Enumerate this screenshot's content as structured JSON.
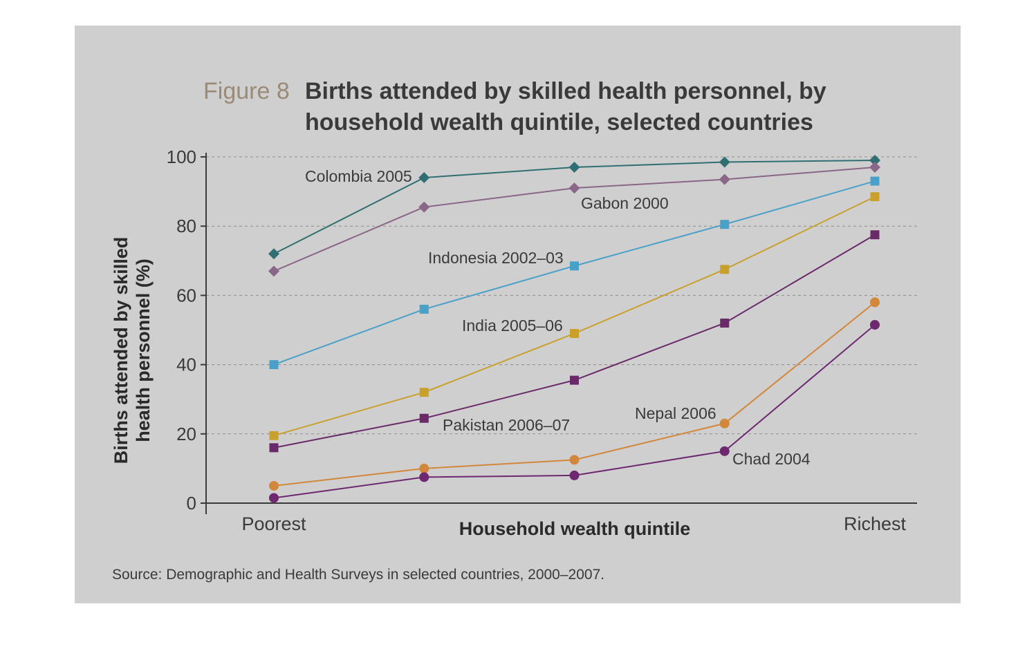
{
  "figure": {
    "title_prefix": "Figure 8",
    "title_line1": "Births attended by skilled health personnel, by",
    "title_line2": "household wealth quintile, selected countries",
    "source": "Source: Demographic and Health Surveys in selected countries, 2000–2007."
  },
  "chart_data": {
    "type": "line",
    "title": "Births attended by skilled health personnel, by household wealth quintile, selected countries",
    "xlabel": "Household wealth quintile",
    "ylabel_line1": "Births attended by skilled",
    "ylabel_line2": "health personnel (%)",
    "categories": [
      "Poorest",
      "",
      "",
      "",
      "Richest"
    ],
    "ylim": [
      0,
      100
    ],
    "yticks": [
      "0",
      "20",
      "40",
      "60",
      "80",
      "100"
    ],
    "grid": true,
    "series": [
      {
        "name": "Colombia 2005",
        "marker": "diamond",
        "color": "#2f6f73",
        "values": [
          72,
          94,
          97,
          98.5,
          99
        ]
      },
      {
        "name": "Gabon 2000",
        "marker": "diamond",
        "color": "#8a6688",
        "values": [
          67,
          85.5,
          91,
          93.5,
          97
        ]
      },
      {
        "name": "Indonesia 2002–03",
        "marker": "square",
        "color": "#49a0c8",
        "values": [
          40,
          56,
          68.5,
          80.5,
          93
        ]
      },
      {
        "name": "India 2005–06",
        "marker": "square",
        "color": "#c9a02c",
        "values": [
          19.5,
          32,
          49,
          67.5,
          88.5
        ]
      },
      {
        "name": "Pakistan 2006–07",
        "marker": "square",
        "color": "#6a2a6a",
        "values": [
          16,
          24.5,
          35.5,
          52,
          77.5
        ]
      },
      {
        "name": "Nepal 2006",
        "marker": "circle",
        "color": "#d2873a",
        "values": [
          5,
          10,
          12.5,
          23,
          58
        ]
      },
      {
        "name": "Chad 2004",
        "marker": "circle",
        "color": "#6e2870",
        "values": [
          1.5,
          7.5,
          8,
          15,
          51.5
        ]
      }
    ]
  }
}
